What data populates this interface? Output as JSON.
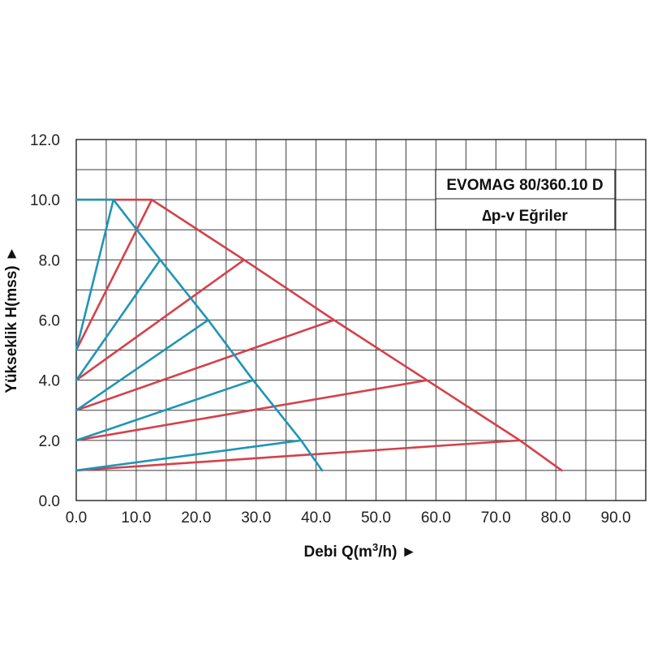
{
  "chart_data": {
    "type": "line",
    "title_lines": [
      "EVOMAG 80/360.10 D",
      "∆p-v Eğriler"
    ],
    "xlabel": "Debi Q(m",
    "xlabel_sup": "3",
    "xlabel_end": "/h) ►",
    "ylabel": "Yükseklik H(mss) ►",
    "xlim": [
      0,
      95
    ],
    "ylim": [
      0,
      12
    ],
    "x_ticks": [
      "0.0",
      "10.0",
      "20.0",
      "30.0",
      "40.0",
      "50.0",
      "60.0",
      "70.0",
      "80.0",
      "90.0"
    ],
    "y_ticks": [
      "0.0",
      "2.0",
      "4.0",
      "6.0",
      "8.0",
      "10.0",
      "12.0"
    ],
    "grid": true,
    "legend_position": "top-right",
    "colors": {
      "red": "#d6404a",
      "blue": "#1f95b6"
    },
    "series": [
      {
        "color": "red",
        "points": [
          [
            0,
            10
          ],
          [
            12.6,
            10
          ],
          [
            28,
            8
          ],
          [
            43,
            6
          ],
          [
            58.5,
            4
          ],
          [
            74,
            2
          ],
          [
            81,
            1
          ]
        ]
      },
      {
        "color": "red",
        "points": [
          [
            0,
            5
          ],
          [
            12.6,
            10
          ]
        ]
      },
      {
        "color": "red",
        "points": [
          [
            0,
            4
          ],
          [
            28,
            8
          ]
        ]
      },
      {
        "color": "red",
        "points": [
          [
            0,
            3
          ],
          [
            43,
            6
          ]
        ]
      },
      {
        "color": "red",
        "points": [
          [
            0,
            2
          ],
          [
            58.5,
            4
          ]
        ]
      },
      {
        "color": "red",
        "points": [
          [
            0,
            1
          ],
          [
            74,
            2
          ]
        ]
      },
      {
        "color": "blue",
        "points": [
          [
            0,
            10
          ],
          [
            6.2,
            10
          ],
          [
            14,
            8
          ],
          [
            22,
            6
          ],
          [
            29.5,
            4
          ],
          [
            37.5,
            2
          ],
          [
            41,
            1
          ]
        ]
      },
      {
        "color": "blue",
        "points": [
          [
            0,
            5
          ],
          [
            6.2,
            10
          ]
        ]
      },
      {
        "color": "blue",
        "points": [
          [
            0,
            4
          ],
          [
            14,
            8
          ]
        ]
      },
      {
        "color": "blue",
        "points": [
          [
            0,
            3
          ],
          [
            22,
            6
          ]
        ]
      },
      {
        "color": "blue",
        "points": [
          [
            0,
            2
          ],
          [
            29.5,
            4
          ]
        ]
      },
      {
        "color": "blue",
        "points": [
          [
            0,
            1
          ],
          [
            37.5,
            2
          ]
        ]
      }
    ]
  }
}
